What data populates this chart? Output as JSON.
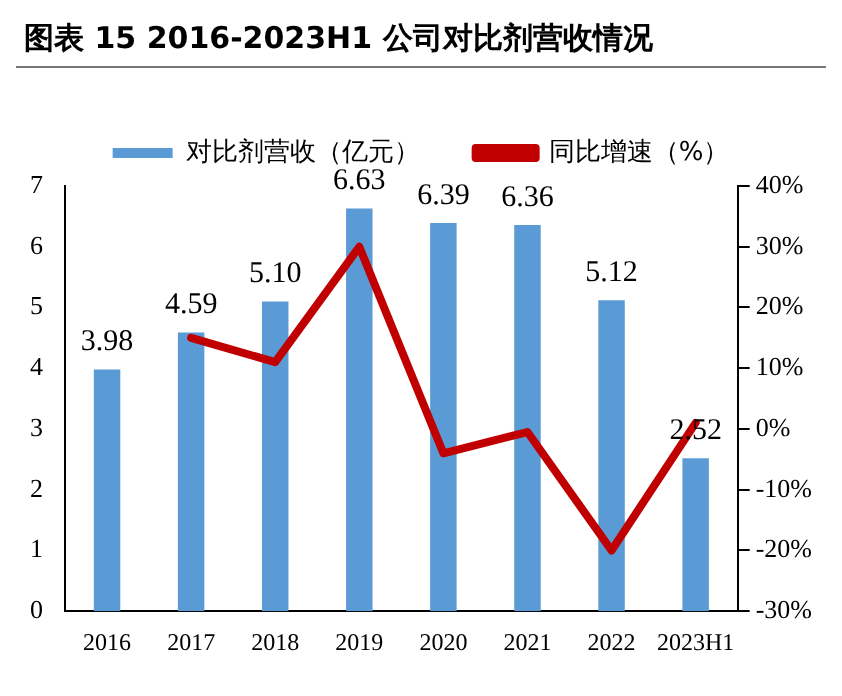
{
  "chart_data": {
    "type": "bar",
    "title": "图表 15 2016-2023H1 公司对比剂营收情况",
    "categories": [
      "2016",
      "2017",
      "2018",
      "2019",
      "2020",
      "2021",
      "2022",
      "2023H1"
    ],
    "series": [
      {
        "name": "对比剂营收（亿元）",
        "color": "#5b9bd5",
        "values": [
          3.98,
          4.59,
          5.1,
          6.63,
          6.39,
          6.36,
          5.12,
          2.52
        ],
        "value_labels": [
          "3.98",
          "4.59",
          "5.10",
          "6.63",
          "6.39",
          "6.36",
          "5.12",
          "2.52"
        ]
      },
      {
        "name": "同比增速（%）",
        "type": "line",
        "axis": "y2",
        "color": "#c00000",
        "values": [
          null,
          15,
          11,
          30,
          -4,
          -0.5,
          -20,
          1
        ]
      }
    ],
    "ylim": [
      0,
      7
    ],
    "yticks": [
      0,
      1,
      2,
      3,
      4,
      5,
      6,
      7
    ],
    "y2lim": [
      -30,
      40
    ],
    "y2ticks": [
      {
        "value": -30,
        "label": "-30%"
      },
      {
        "value": -20,
        "label": "-20%"
      },
      {
        "value": -10,
        "label": "-10%"
      },
      {
        "value": 0,
        "label": "0%"
      },
      {
        "value": 10,
        "label": "10%"
      },
      {
        "value": 20,
        "label": "20%"
      },
      {
        "value": 30,
        "label": "30%"
      },
      {
        "value": 40,
        "label": "40%"
      }
    ],
    "grid": false,
    "legend": "top",
    "marker": "none",
    "line_style": "solid"
  }
}
